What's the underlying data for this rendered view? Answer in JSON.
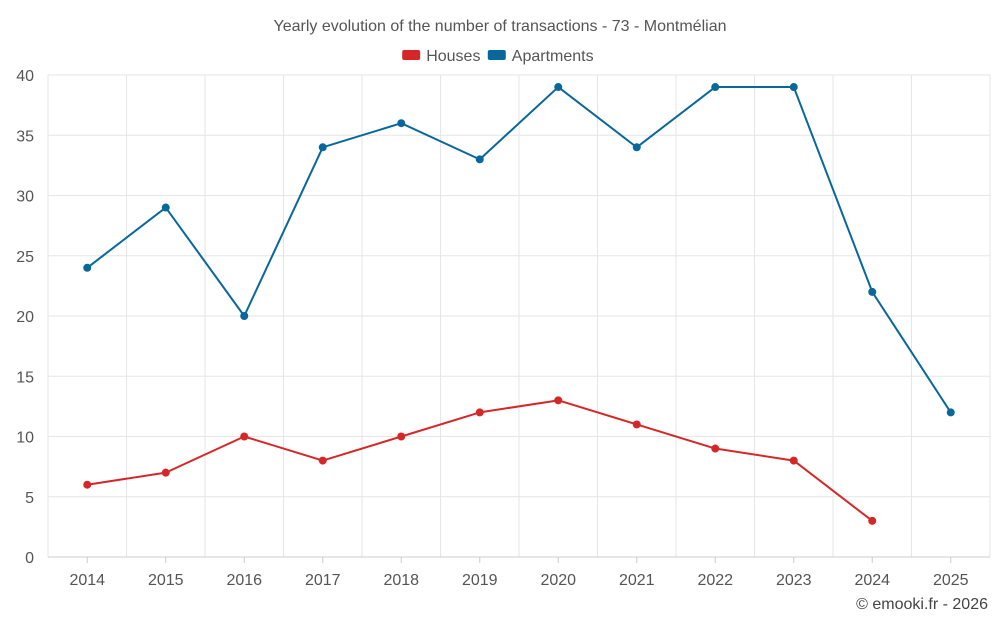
{
  "chart_data": {
    "type": "line",
    "title": "Yearly evolution of the number of transactions - 73 - Montmélian",
    "categories": [
      "2014",
      "2015",
      "2016",
      "2017",
      "2018",
      "2019",
      "2020",
      "2021",
      "2022",
      "2023",
      "2024",
      "2025"
    ],
    "ylim": [
      0,
      40
    ],
    "yticks": [
      0,
      5,
      10,
      15,
      20,
      25,
      30,
      35,
      40
    ],
    "grid": true,
    "legend_position": "top-center",
    "series": [
      {
        "name": "Houses",
        "color": "#d62728",
        "values": [
          6,
          7,
          10,
          8,
          10,
          12,
          13,
          11,
          9,
          8,
          3,
          null
        ]
      },
      {
        "name": "Apartments",
        "color": "#08689b",
        "values": [
          24,
          29,
          20,
          34,
          36,
          33,
          39,
          34,
          39,
          39,
          22,
          12
        ]
      }
    ],
    "credit": "© emooki.fr - 2026"
  }
}
